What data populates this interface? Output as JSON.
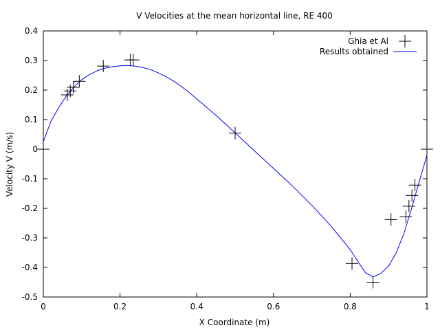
{
  "chart_data": {
    "type": "line",
    "title": "V Velocities at the mean horizontal line, RE 400",
    "xlabel": "X Coordinate (m)",
    "ylabel": "Velocity V (m/s)",
    "xlim": [
      0,
      1
    ],
    "ylim": [
      -0.5,
      0.4
    ],
    "x_ticks": [
      "0",
      "0.2",
      "0.4",
      "0.6",
      "0.8",
      "1"
    ],
    "x_tick_values": [
      0,
      0.2,
      0.4,
      0.6,
      0.8,
      1.0
    ],
    "y_ticks": [
      "0.4",
      "0.3",
      "0.2",
      "0.1",
      "0",
      "-0.1",
      "-0.2",
      "-0.3",
      "-0.4",
      "-0.5"
    ],
    "y_tick_values": [
      0.4,
      0.3,
      0.2,
      0.1,
      0,
      -0.1,
      -0.2,
      -0.3,
      -0.4,
      -0.5
    ],
    "grid": false,
    "legend_position": "top-right",
    "series": [
      {
        "name": "Ghia et Al",
        "style": "points",
        "marker": "plus",
        "color": "#000000",
        "x": [
          0.0,
          0.0625,
          0.0703,
          0.0781,
          0.0938,
          0.1563,
          0.2266,
          0.2344,
          0.5,
          0.8047,
          0.8594,
          0.9063,
          0.9453,
          0.9531,
          0.9609,
          0.9688,
          1.0
        ],
        "y": [
          0.0,
          0.1836,
          0.1971,
          0.2092,
          0.2297,
          0.2812,
          0.302,
          0.302,
          0.0545,
          -0.3869,
          -0.4499,
          -0.238,
          -0.2282,
          -0.1926,
          -0.1566,
          -0.1215,
          0.0
        ]
      },
      {
        "name": "Results obtained",
        "style": "line",
        "color": "#0000ff",
        "x": [
          0.0,
          0.02,
          0.04,
          0.06,
          0.08,
          0.1,
          0.12,
          0.14,
          0.16,
          0.18,
          0.2,
          0.22,
          0.24,
          0.26,
          0.28,
          0.3,
          0.32,
          0.34,
          0.36,
          0.38,
          0.4,
          0.45,
          0.5,
          0.55,
          0.6,
          0.65,
          0.7,
          0.75,
          0.8,
          0.82,
          0.84,
          0.86,
          0.88,
          0.9,
          0.92,
          0.94,
          0.96,
          0.98,
          1.0
        ],
        "y": [
          0.025,
          0.095,
          0.14,
          0.18,
          0.21,
          0.235,
          0.252,
          0.265,
          0.274,
          0.279,
          0.282,
          0.283,
          0.281,
          0.276,
          0.269,
          0.258,
          0.245,
          0.23,
          0.212,
          0.192,
          0.17,
          0.115,
          0.055,
          -0.005,
          -0.065,
          -0.125,
          -0.19,
          -0.26,
          -0.34,
          -0.38,
          -0.418,
          -0.432,
          -0.42,
          -0.395,
          -0.35,
          -0.285,
          -0.2,
          -0.11,
          -0.02
        ]
      }
    ]
  }
}
